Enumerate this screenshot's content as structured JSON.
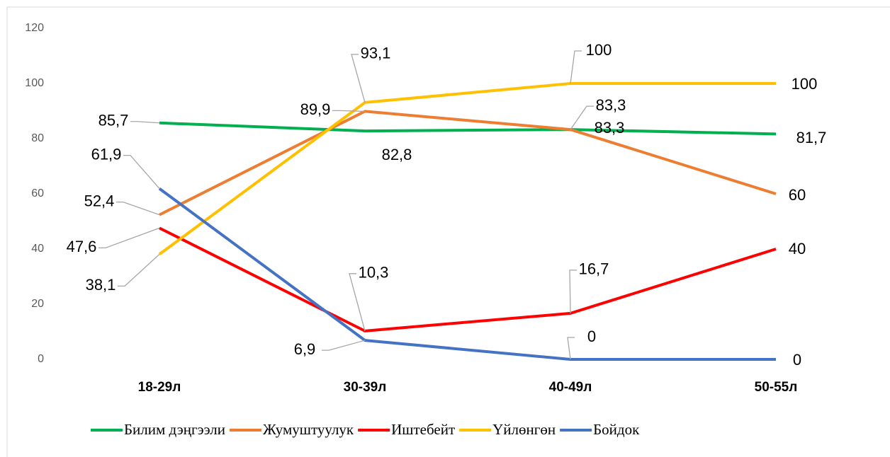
{
  "chart_data": {
    "type": "line",
    "categories": [
      "18-29л",
      "30-39л",
      "40-49л",
      "50-55л"
    ],
    "series": [
      {
        "name": "Билим дэңгээли",
        "color": "#00b050",
        "values": [
          85.7,
          82.8,
          83.3,
          81.7
        ],
        "value_labels": [
          "85,7",
          "82,8",
          "83,3",
          "81,7"
        ]
      },
      {
        "name": "Жумуштуулук",
        "color": "#ed7d31",
        "values": [
          52.4,
          89.9,
          83.3,
          60
        ],
        "value_labels": [
          "52,4",
          "89,9",
          "83,3",
          "60"
        ]
      },
      {
        "name": "Иштебейт",
        "color": "#ff0000",
        "values": [
          47.6,
          10.3,
          16.7,
          40
        ],
        "value_labels": [
          "47,6",
          "10,3",
          "16,7",
          "40"
        ]
      },
      {
        "name": "Үйлөнгөн",
        "color": "#ffc000",
        "values": [
          38.1,
          93.1,
          100,
          100
        ],
        "value_labels": [
          "38,1",
          "93,1",
          "100",
          "100"
        ]
      },
      {
        "name": "Бойдок",
        "color": "#4472c4",
        "values": [
          61.9,
          6.9,
          0,
          0
        ],
        "value_labels": [
          "61,9",
          "6,9",
          "0",
          "0"
        ]
      }
    ],
    "ylim": [
      0,
      120
    ],
    "yticks": [
      0,
      20,
      40,
      60,
      80,
      100,
      120
    ],
    "grid": false,
    "legend": "bottom"
  }
}
